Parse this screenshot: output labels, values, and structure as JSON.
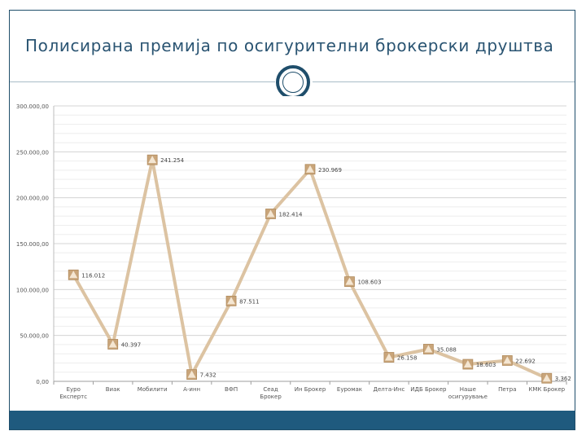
{
  "title": "Полисирана премија по осигурителни брокерски друштва",
  "colors": {
    "frame": "#1f4e6b",
    "line": "#dcc3a2",
    "marker": "#c9a57a",
    "grid": "#d6d6d6",
    "text": "#555555",
    "footer": "#1f5a7e"
  },
  "chart_data": {
    "type": "line",
    "title": "",
    "xlabel": "",
    "ylabel": "",
    "ylim": [
      0,
      300000
    ],
    "grid": true,
    "yticks": [
      {
        "value": 0,
        "label": "0,00"
      },
      {
        "value": 50000,
        "label": "50.000,00"
      },
      {
        "value": 100000,
        "label": "100.000,00"
      },
      {
        "value": 150000,
        "label": "150.000,00"
      },
      {
        "value": 200000,
        "label": "200.000,00"
      },
      {
        "value": 250000,
        "label": "250.000,00"
      },
      {
        "value": 300000,
        "label": "300.000,00"
      }
    ],
    "categories": [
      "Еуро Експертс",
      "Виак",
      "Мобилити",
      "А-инн",
      "ВФП",
      "Сеад Брокер",
      "Ин Брокер",
      "Еуромак",
      "Делта-Инс",
      "ИДБ Брокер",
      "Наше осигурување",
      "Петра",
      "КМК Брокер"
    ],
    "values": [
      116012,
      40397,
      241254,
      7432,
      87511,
      182414,
      230969,
      108603,
      26158,
      35088,
      18603,
      22692,
      3362
    ],
    "data_labels": [
      "116.012",
      "40.397",
      "241.254",
      "7.432",
      "87.511",
      "182.414",
      "230.969",
      "108.603",
      "26.158",
      "35.088",
      "18.603",
      "22.692",
      "3.362"
    ]
  }
}
